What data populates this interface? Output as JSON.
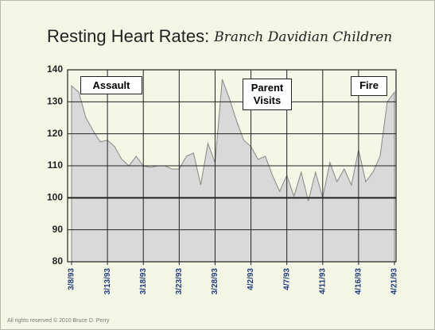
{
  "chart_data": {
    "type": "area",
    "title": "Resting Heart Rates:",
    "subtitle": "Branch Davidian Children",
    "categories": [
      "3/8/93",
      null,
      null,
      null,
      null,
      "3/13/93",
      null,
      null,
      null,
      null,
      "3/18/93",
      null,
      null,
      null,
      null,
      "3/23/93",
      null,
      null,
      null,
      null,
      "3/28/93",
      null,
      null,
      null,
      null,
      "4/2/93",
      null,
      null,
      null,
      null,
      "4/7/93",
      null,
      null,
      null,
      null,
      "4/11/93",
      null,
      null,
      null,
      null,
      "4/16/93",
      null,
      null,
      null,
      null,
      "4/21/93"
    ],
    "values": [
      135,
      133,
      125,
      121,
      117.5,
      118,
      116,
      112,
      110,
      113,
      110,
      109.5,
      110,
      110,
      109,
      109,
      113,
      114,
      104,
      117,
      111,
      137,
      131,
      124,
      118,
      116,
      112,
      113,
      107,
      102,
      107,
      100.5,
      108,
      99,
      108,
      100,
      111,
      105,
      109,
      104,
      115,
      105,
      108,
      113,
      130,
      133
    ],
    "color": "#d9d9d9",
    "ylim": [
      80,
      140
    ],
    "yticks": [
      80,
      90,
      100,
      110,
      120,
      130,
      140
    ],
    "grid": true,
    "annotations": [
      "Assault",
      "Parent Visits",
      "Fire"
    ],
    "footer": "All rights reserved © 2010 Bruce D. Perry"
  }
}
